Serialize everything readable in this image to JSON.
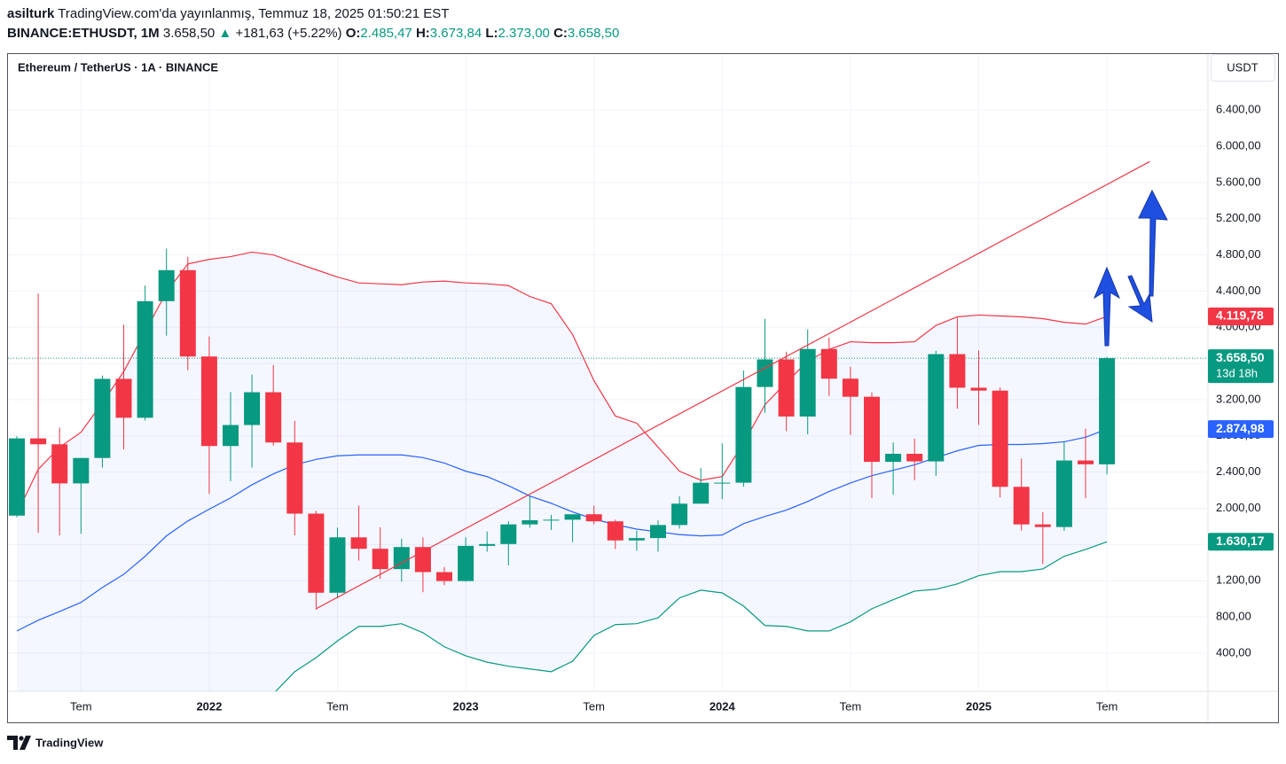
{
  "header": {
    "user": "asilturk",
    "published": "TradingView.com'da yayınlanmış, Temmuz 18, 2025 01:50:21 EST",
    "symbol": "BINANCE:ETHUSDT, 1M",
    "price": "3.658,50",
    "arrow": "▲",
    "change": "+181,63 (+5.22%)",
    "ohlc": [
      {
        "label": "O:",
        "value": "2.485,47"
      },
      {
        "label": "H:",
        "value": "3.673,84"
      },
      {
        "label": "L:",
        "value": "2.373,00"
      },
      {
        "label": "C:",
        "value": "3.658,50"
      }
    ]
  },
  "footer": {
    "brand": "TradingView"
  },
  "chart_data": {
    "type": "candlestick",
    "title": "Ethereum / TetherUS · 1A · BINANCE",
    "currency": "USDT",
    "categories": [
      null,
      null,
      null,
      "Tem",
      null,
      null,
      null,
      null,
      null,
      "2022",
      null,
      null,
      null,
      null,
      null,
      "Tem",
      null,
      null,
      null,
      null,
      null,
      "2023",
      null,
      null,
      null,
      null,
      null,
      "Tem",
      null,
      null,
      null,
      null,
      null,
      "2024",
      null,
      null,
      null,
      null,
      null,
      "Tem",
      null,
      null,
      null,
      null,
      null,
      "2025",
      null,
      null,
      null,
      null,
      null,
      "Tem"
    ],
    "open": [
      1919,
      2772,
      2707,
      2275,
      2556,
      3430,
      3000,
      4288,
      4631,
      3677,
      2688,
      2920,
      3282,
      2727,
      1941,
      1067,
      1679,
      1553,
      1328,
      1572,
      1295,
      1196,
      1585,
      1605,
      1822,
      1868,
      1874,
      1934,
      1856,
      1645,
      1671,
      1815,
      2051,
      2282,
      2283,
      3340,
      3645,
      3014,
      3760,
      3432,
      3232,
      2513,
      2602,
      2518,
      3703,
      3332,
      3300,
      2237,
      1822,
      1793,
      2528,
      2485.47
    ],
    "high": [
      2797,
      4372,
      2891,
      2551,
      3467,
      4028,
      4460,
      4868,
      4778,
      3900,
      3284,
      3478,
      3582,
      2966,
      1972,
      1786,
      2030,
      1790,
      1663,
      1678,
      1352,
      1680,
      1743,
      1857,
      2141,
      1928,
      1929,
      2029,
      1875,
      1754,
      1865,
      2133,
      2445,
      2717,
      3523,
      4093,
      3730,
      3977,
      3887,
      3563,
      3283,
      2728,
      2769,
      3740,
      4107,
      3744,
      3335,
      2550,
      1957,
      2738,
      2880,
      3673.84
    ],
    "low": [
      1900,
      1728,
      1700,
      1719,
      2450,
      2652,
      2970,
      3907,
      3525,
      2159,
      2300,
      2450,
      2693,
      1700,
      881,
      1005,
      1422,
      1220,
      1190,
      1073,
      1150,
      1190,
      1520,
      1370,
      1785,
      1760,
      1626,
      1823,
      1550,
      1531,
      1521,
      1776,
      2050,
      2100,
      2238,
      3056,
      2852,
      2817,
      3240,
      2810,
      2111,
      2150,
      2310,
      2357,
      3100,
      2920,
      2120,
      1754,
      1385,
      1750,
      2111,
      2373
    ],
    "close": [
      2772,
      2707,
      2275,
      2556,
      3430,
      3000,
      4288,
      4631,
      3677,
      2688,
      2920,
      3282,
      2727,
      1941,
      1067,
      1679,
      1553,
      1328,
      1572,
      1295,
      1196,
      1585,
      1605,
      1822,
      1868,
      1874,
      1934,
      1856,
      1645,
      1671,
      1815,
      2051,
      2282,
      2283,
      3340,
      3645,
      3014,
      3760,
      3432,
      3232,
      2513,
      2602,
      2518,
      3703,
      3332,
      3300,
      2237,
      1822,
      1793,
      2528,
      2486,
      3658.5
    ],
    "up_color": "#089981",
    "down_color": "#f23645",
    "upper": {
      "color": "#f23645",
      "values": [
        1940,
        2430,
        2675,
        2840,
        3165,
        3510,
        3950,
        4390,
        4700,
        4750,
        4780,
        4830,
        4800,
        4715,
        4635,
        4555,
        4490,
        4480,
        4470,
        4500,
        4510,
        4490,
        4480,
        4460,
        4340,
        4260,
        3920,
        3410,
        3020,
        2940,
        2675,
        2410,
        2310,
        2350,
        2720,
        3145,
        3390,
        3625,
        3755,
        3840,
        3830,
        3830,
        3840,
        4020,
        4115,
        4135,
        4125,
        4115,
        4095,
        4055,
        4035,
        4119.78
      ]
    },
    "middle": {
      "color": "#2962ff",
      "values": [
        645,
        763,
        860,
        960,
        1125,
        1270,
        1470,
        1695,
        1860,
        1990,
        2115,
        2260,
        2380,
        2480,
        2540,
        2580,
        2590,
        2590,
        2590,
        2560,
        2500,
        2410,
        2350,
        2250,
        2135,
        2055,
        1960,
        1880,
        1820,
        1770,
        1740,
        1710,
        1695,
        1705,
        1830,
        1910,
        1980,
        2075,
        2185,
        2280,
        2360,
        2420,
        2480,
        2560,
        2635,
        2695,
        2705,
        2705,
        2715,
        2735,
        2785,
        2874.98
      ]
    },
    "lower": {
      "color": "#089981",
      "values": [
        null,
        null,
        null,
        null,
        null,
        null,
        null,
        null,
        null,
        null,
        null,
        null,
        -50,
        195,
        350,
        535,
        695,
        695,
        725,
        625,
        470,
        370,
        300,
        255,
        225,
        195,
        310,
        595,
        715,
        725,
        790,
        1010,
        1095,
        1065,
        920,
        705,
        695,
        645,
        645,
        745,
        890,
        990,
        1085,
        1105,
        1165,
        1255,
        1300,
        1300,
        1330,
        1470,
        1545,
        1630.17
      ]
    },
    "band_fill": "#2962ff",
    "trendline": {
      "color": "#f23645",
      "x": [
        14,
        53
      ],
      "y": [
        890,
        5830
      ]
    },
    "ylim": [
      -22,
      7018
    ],
    "yticks": [
      {
        "value": 400,
        "label": "400,00"
      },
      {
        "value": 800,
        "label": "800,00"
      },
      {
        "value": 1200,
        "label": "1.200,00"
      },
      {
        "value": 1600,
        "label": "1.600,00"
      },
      {
        "value": 2000,
        "label": "2.000,00"
      },
      {
        "value": 2400,
        "label": "2.400,00"
      },
      {
        "value": 2800,
        "label": "2.800,00"
      },
      {
        "value": 3200,
        "label": "3.200,00"
      },
      {
        "value": 3600,
        "label": "3.600,00"
      },
      {
        "value": 4000,
        "label": "4.000,00"
      },
      {
        "value": 4400,
        "label": "4.400,00"
      },
      {
        "value": 4800,
        "label": "4.800,00"
      },
      {
        "value": 5200,
        "label": "5.200,00"
      },
      {
        "value": 5600,
        "label": "5.600,00"
      },
      {
        "value": 6000,
        "label": "6.000,00"
      },
      {
        "value": 6400,
        "label": "6.400,00"
      }
    ],
    "grid": true,
    "price_labels": [
      {
        "value": 4119.78,
        "label": "4.119,78",
        "color": "#f23645"
      },
      {
        "value": 3658.5,
        "label": "3.658,50",
        "sub": "13d 18h",
        "color": "#089981",
        "last": true
      },
      {
        "value": 2874.98,
        "label": "2.874,98",
        "color": "#2962ff"
      },
      {
        "value": 1630.17,
        "label": "1.630,17",
        "color": "#089981"
      }
    ]
  }
}
